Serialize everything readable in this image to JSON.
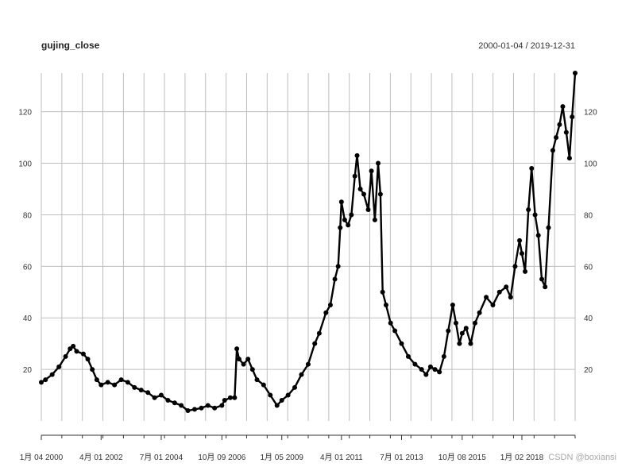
{
  "chart_data": {
    "type": "line",
    "title": "gujing_close",
    "date_range": "2000-01-04 / 2019-12-31",
    "x_range": [
      "2000-01-04",
      "2019-12-31"
    ],
    "ylim": [
      0,
      135
    ],
    "y_ticks": [
      20,
      40,
      60,
      80,
      100,
      120
    ],
    "grid": true,
    "markers": true,
    "x_ticks": [
      {
        "date": "2000-01-04",
        "label": "1月 04 2000"
      },
      {
        "date": "2002-04-01",
        "label": "4月 01 2002"
      },
      {
        "date": "2004-07-01",
        "label": "7月 01 2004"
      },
      {
        "date": "2006-10-09",
        "label": "10月 09 2006"
      },
      {
        "date": "2009-01-05",
        "label": "1月 05 2009"
      },
      {
        "date": "2011-04-01",
        "label": "4月 01 2011"
      },
      {
        "date": "2013-07-01",
        "label": "7月 01 2013"
      },
      {
        "date": "2015-10-08",
        "label": "10月 08 2015"
      },
      {
        "date": "2018-01-02",
        "label": "1月 02 2018"
      }
    ],
    "series": [
      {
        "points": [
          [
            "2000-01-04",
            15.0
          ],
          [
            "2000-03-01",
            16.0
          ],
          [
            "2000-06-01",
            18.0
          ],
          [
            "2000-09-01",
            21.0
          ],
          [
            "2000-12-01",
            25.0
          ],
          [
            "2001-02-01",
            28.0
          ],
          [
            "2001-03-15",
            29.0
          ],
          [
            "2001-05-01",
            27.0
          ],
          [
            "2001-08-01",
            26.0
          ],
          [
            "2001-10-01",
            24.0
          ],
          [
            "2001-12-01",
            20.0
          ],
          [
            "2002-02-01",
            16.0
          ],
          [
            "2002-04-01",
            14.0
          ],
          [
            "2002-07-01",
            15.0
          ],
          [
            "2002-10-01",
            14.0
          ],
          [
            "2003-01-01",
            16.0
          ],
          [
            "2003-04-01",
            15.0
          ],
          [
            "2003-07-01",
            13.0
          ],
          [
            "2003-10-01",
            12.0
          ],
          [
            "2004-01-01",
            11.0
          ],
          [
            "2004-04-01",
            9.0
          ],
          [
            "2004-07-01",
            10.0
          ],
          [
            "2004-10-01",
            8.0
          ],
          [
            "2005-01-01",
            7.0
          ],
          [
            "2005-04-01",
            6.0
          ],
          [
            "2005-07-01",
            4.0
          ],
          [
            "2005-10-01",
            4.5
          ],
          [
            "2006-01-01",
            5.0
          ],
          [
            "2006-04-01",
            6.0
          ],
          [
            "2006-07-01",
            5.0
          ],
          [
            "2006-10-09",
            6.0
          ],
          [
            "2006-11-15",
            8.0
          ],
          [
            "2007-02-01",
            9.0
          ],
          [
            "2007-04-01",
            9.0
          ],
          [
            "2007-05-01",
            28.0
          ],
          [
            "2007-06-01",
            24.0
          ],
          [
            "2007-08-01",
            22.0
          ],
          [
            "2007-10-01",
            24.0
          ],
          [
            "2007-12-01",
            20.0
          ],
          [
            "2008-02-01",
            16.0
          ],
          [
            "2008-05-01",
            14.0
          ],
          [
            "2008-08-01",
            10.0
          ],
          [
            "2008-11-01",
            6.0
          ],
          [
            "2009-01-05",
            8.0
          ],
          [
            "2009-04-01",
            10.0
          ],
          [
            "2009-07-01",
            13.0
          ],
          [
            "2009-10-01",
            18.0
          ],
          [
            "2010-01-01",
            22.0
          ],
          [
            "2010-04-01",
            30.0
          ],
          [
            "2010-06-01",
            34.0
          ],
          [
            "2010-09-01",
            42.0
          ],
          [
            "2010-11-01",
            45.0
          ],
          [
            "2011-01-01",
            55.0
          ],
          [
            "2011-02-15",
            60.0
          ],
          [
            "2011-03-15",
            75.0
          ],
          [
            "2011-04-01",
            85.0
          ],
          [
            "2011-05-15",
            78.0
          ],
          [
            "2011-07-01",
            76.0
          ],
          [
            "2011-08-15",
            80.0
          ],
          [
            "2011-10-01",
            95.0
          ],
          [
            "2011-11-01",
            103.0
          ],
          [
            "2011-12-15",
            90.0
          ],
          [
            "2012-02-01",
            88.0
          ],
          [
            "2012-04-01",
            82.0
          ],
          [
            "2012-05-15",
            97.0
          ],
          [
            "2012-07-01",
            78.0
          ],
          [
            "2012-08-15",
            100.0
          ],
          [
            "2012-09-15",
            88.0
          ],
          [
            "2012-10-15",
            50.0
          ],
          [
            "2012-12-01",
            45.0
          ],
          [
            "2013-02-01",
            38.0
          ],
          [
            "2013-04-01",
            35.0
          ],
          [
            "2013-07-01",
            30.0
          ],
          [
            "2013-10-01",
            25.0
          ],
          [
            "2014-01-01",
            22.0
          ],
          [
            "2014-04-01",
            20.0
          ],
          [
            "2014-06-01",
            18.0
          ],
          [
            "2014-08-01",
            21.0
          ],
          [
            "2014-10-01",
            20.0
          ],
          [
            "2014-12-01",
            19.0
          ],
          [
            "2015-02-01",
            25.0
          ],
          [
            "2015-04-01",
            35.0
          ],
          [
            "2015-06-01",
            45.0
          ],
          [
            "2015-07-15",
            38.0
          ],
          [
            "2015-09-01",
            30.0
          ],
          [
            "2015-10-08",
            34.0
          ],
          [
            "2015-12-01",
            36.0
          ],
          [
            "2016-02-01",
            30.0
          ],
          [
            "2016-04-01",
            38.0
          ],
          [
            "2016-06-01",
            42.0
          ],
          [
            "2016-09-01",
            48.0
          ],
          [
            "2016-12-01",
            45.0
          ],
          [
            "2017-03-01",
            50.0
          ],
          [
            "2017-06-01",
            52.0
          ],
          [
            "2017-08-01",
            48.0
          ],
          [
            "2017-10-01",
            60.0
          ],
          [
            "2017-12-01",
            70.0
          ],
          [
            "2018-01-02",
            65.0
          ],
          [
            "2018-02-15",
            58.0
          ],
          [
            "2018-04-01",
            82.0
          ],
          [
            "2018-05-15",
            98.0
          ],
          [
            "2018-07-01",
            80.0
          ],
          [
            "2018-08-15",
            72.0
          ],
          [
            "2018-10-01",
            55.0
          ],
          [
            "2018-11-15",
            52.0
          ],
          [
            "2019-01-01",
            75.0
          ],
          [
            "2019-03-01",
            105.0
          ],
          [
            "2019-04-15",
            110.0
          ],
          [
            "2019-06-01",
            115.0
          ],
          [
            "2019-07-15",
            122.0
          ],
          [
            "2019-09-01",
            112.0
          ],
          [
            "2019-10-15",
            102.0
          ],
          [
            "2019-11-20",
            118.0
          ],
          [
            "2019-12-31",
            135.0
          ]
        ]
      }
    ]
  },
  "watermark": "CSDN @boxiansi"
}
